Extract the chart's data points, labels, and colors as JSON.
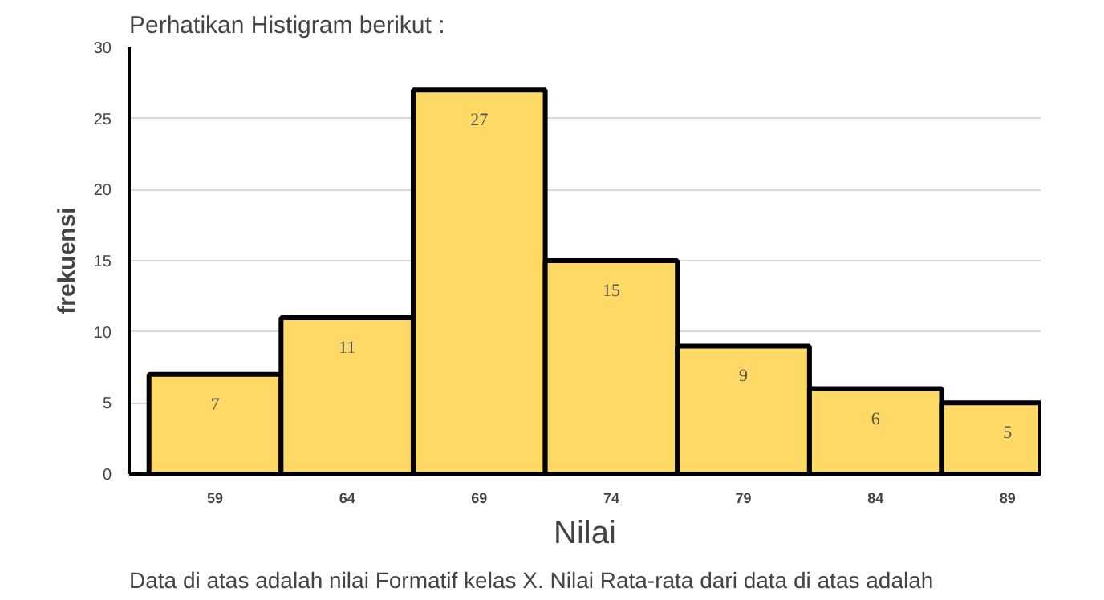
{
  "chart_data": {
    "type": "bar",
    "title": "Perhatikan Histigram berikut :",
    "xlabel": "Nilai",
    "ylabel": "frekuensi",
    "categories": [
      "59",
      "64",
      "69",
      "74",
      "79",
      "84",
      "89"
    ],
    "values": [
      7,
      11,
      27,
      15,
      9,
      6,
      5
    ],
    "color": "#ffd966",
    "ylim": [
      0,
      30
    ],
    "yticks": [
      0,
      5,
      10,
      15,
      20,
      25,
      30
    ],
    "grid": "y",
    "data_labels": true,
    "annotations": [
      "Data di atas adalah nilai Formatif kelas X. Nilai Rata-rata dari data di atas adalah"
    ]
  }
}
